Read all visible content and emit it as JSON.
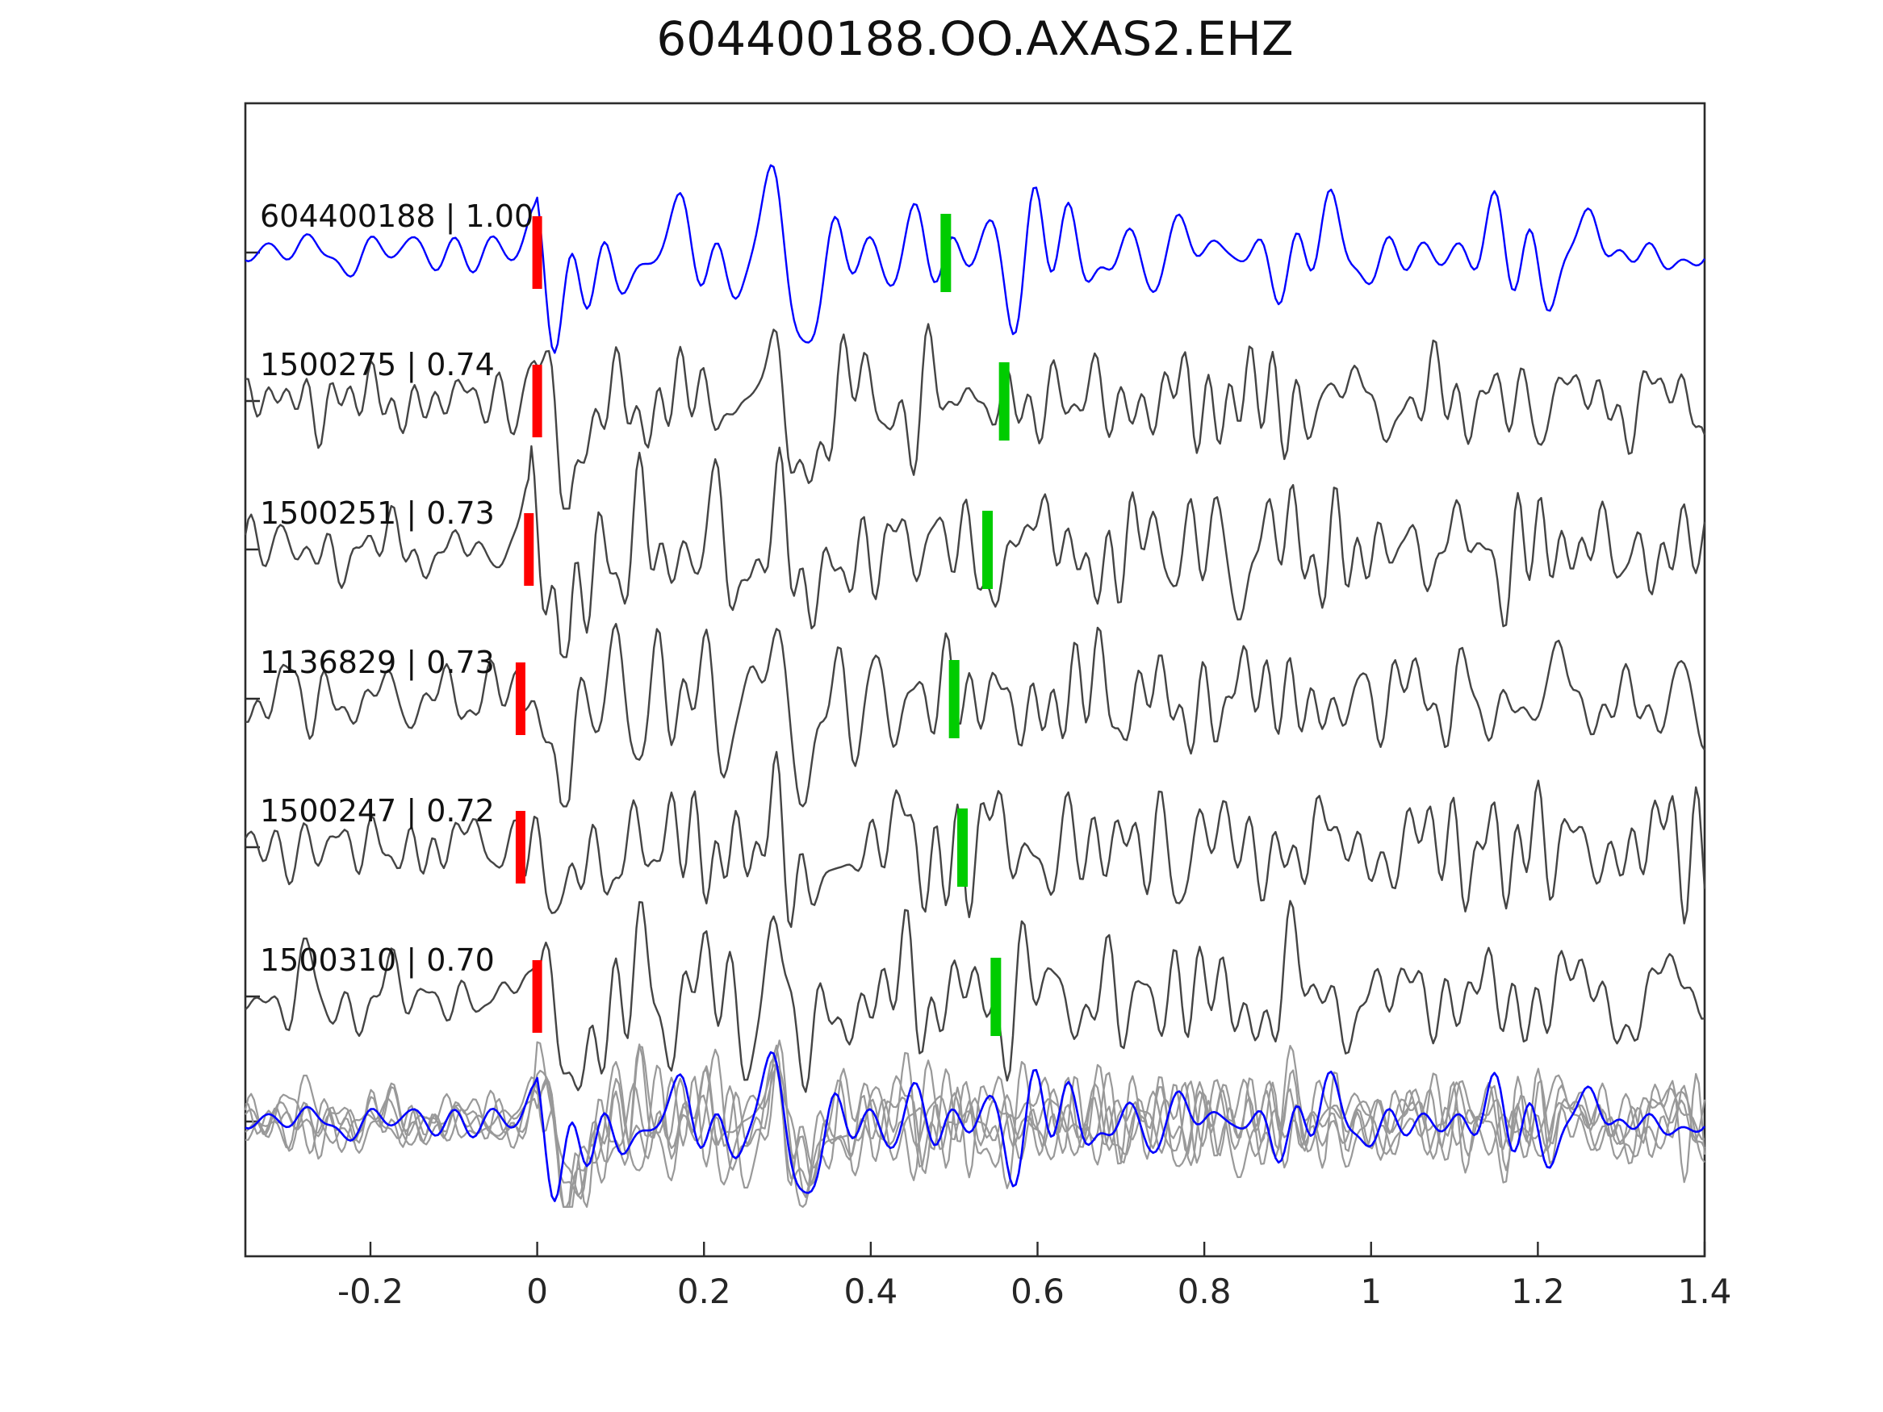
{
  "title": "604400188.OO.AXAS2.EHZ",
  "chart_data": {
    "type": "line",
    "title": "604400188.OO.AXAS2.EHZ",
    "xlabel": "",
    "ylabel": "",
    "xlim": [
      -0.35,
      1.4
    ],
    "xticks": [
      -0.2,
      0,
      0.2,
      0.4,
      0.6,
      0.8,
      1,
      1.2,
      1.4
    ],
    "xtick_labels": [
      "-0.2",
      "0",
      "0.2",
      "0.4",
      "0.6",
      "0.8",
      "1",
      "1.2",
      "1.4"
    ],
    "grid": false,
    "legend": "none",
    "note": "Six stacked seismic waveform rows labeled 'event id | correlation'; each row has a red vertical pick bar near 0 s and a green vertical pick bar near 0.5-0.56 s; bottom row overlays all gray matched traces with the blue template trace; large aligned arrivals near t=0 and t=0.3.",
    "traces": [
      {
        "id": "604400188",
        "similarity": 1.0,
        "label": "604400188 | 1.00",
        "color": "#0000ff",
        "red_pick_s": 0.0,
        "green_pick_s": 0.49
      },
      {
        "id": "1500275",
        "similarity": 0.74,
        "label": "1500275 | 0.74",
        "color": "#444444",
        "red_pick_s": 0.0,
        "green_pick_s": 0.56
      },
      {
        "id": "1500251",
        "similarity": 0.73,
        "label": "1500251 | 0.73",
        "color": "#444444",
        "red_pick_s": -0.01,
        "green_pick_s": 0.54
      },
      {
        "id": "1136829",
        "similarity": 0.73,
        "label": "1136829 | 0.73",
        "color": "#444444",
        "red_pick_s": -0.02,
        "green_pick_s": 0.5
      },
      {
        "id": "1500247",
        "similarity": 0.72,
        "label": "1500247 | 0.72",
        "color": "#444444",
        "red_pick_s": -0.02,
        "green_pick_s": 0.51
      },
      {
        "id": "1500310",
        "similarity": 0.7,
        "label": "1500310 | 0.70",
        "color": "#444444",
        "red_pick_s": 0.0,
        "green_pick_s": 0.55
      }
    ],
    "overlay": {
      "gray_trace_count": 5,
      "gray_color": "#999999",
      "template_color": "#0000ff"
    },
    "colors": {
      "pick_red": "#ff0000",
      "pick_green": "#00cc00",
      "frame": "#2b2b2b"
    }
  }
}
